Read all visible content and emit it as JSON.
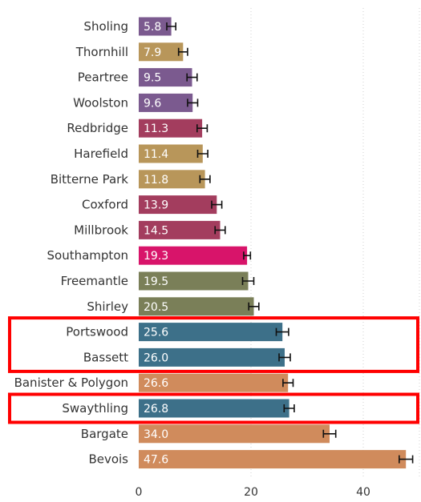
{
  "chart_data": {
    "type": "bar",
    "orientation": "horizontal",
    "categories": [
      "Sholing",
      "Thornhill",
      "Peartree",
      "Woolston",
      "Redbridge",
      "Harefield",
      "Bitterne Park",
      "Coxford",
      "Millbrook",
      "Southampton",
      "Freemantle",
      "Shirley",
      "Portswood",
      "Bassett",
      "Banister & Polygon",
      "Swaythling",
      "Bargate",
      "Bevois"
    ],
    "values": [
      5.8,
      7.9,
      9.5,
      9.6,
      11.3,
      11.4,
      11.8,
      13.9,
      14.5,
      19.3,
      19.5,
      20.5,
      25.6,
      26.0,
      26.6,
      26.8,
      34.0,
      47.6
    ],
    "value_labels": [
      "5.8",
      "7.9",
      "9.5",
      "9.6",
      "11.3",
      "11.4",
      "11.8",
      "13.9",
      "14.5",
      "19.3",
      "19.5",
      "20.5",
      "25.6",
      "26.0",
      "26.6",
      "26.8",
      "34.0",
      "47.6"
    ],
    "error_margin": [
      0.8,
      0.8,
      0.9,
      0.9,
      0.9,
      0.9,
      0.9,
      0.9,
      0.9,
      0.6,
      1.0,
      0.9,
      1.1,
      1.0,
      0.9,
      0.9,
      1.1,
      1.2
    ],
    "colors": [
      "#7b5a8f",
      "#b8965a",
      "#7b5a8f",
      "#7b5a8f",
      "#a33d5e",
      "#b8965a",
      "#b8965a",
      "#a33d5e",
      "#a33d5e",
      "#d8146a",
      "#7a7f58",
      "#7a7f58",
      "#3d7089",
      "#3d7089",
      "#d08b5c",
      "#3d7089",
      "#d08b5c",
      "#d08b5c"
    ],
    "highlighted_groups": [
      [
        "Portswood",
        "Bassett"
      ],
      [
        "Swaythling"
      ]
    ],
    "highlight_color": "#ff0000",
    "x_ticks": [
      0,
      20,
      40
    ],
    "x_tick_labels": [
      "0",
      "20",
      "40"
    ],
    "xlim": [
      0,
      50
    ],
    "grid": true,
    "title": "",
    "xlabel": "",
    "ylabel": ""
  }
}
